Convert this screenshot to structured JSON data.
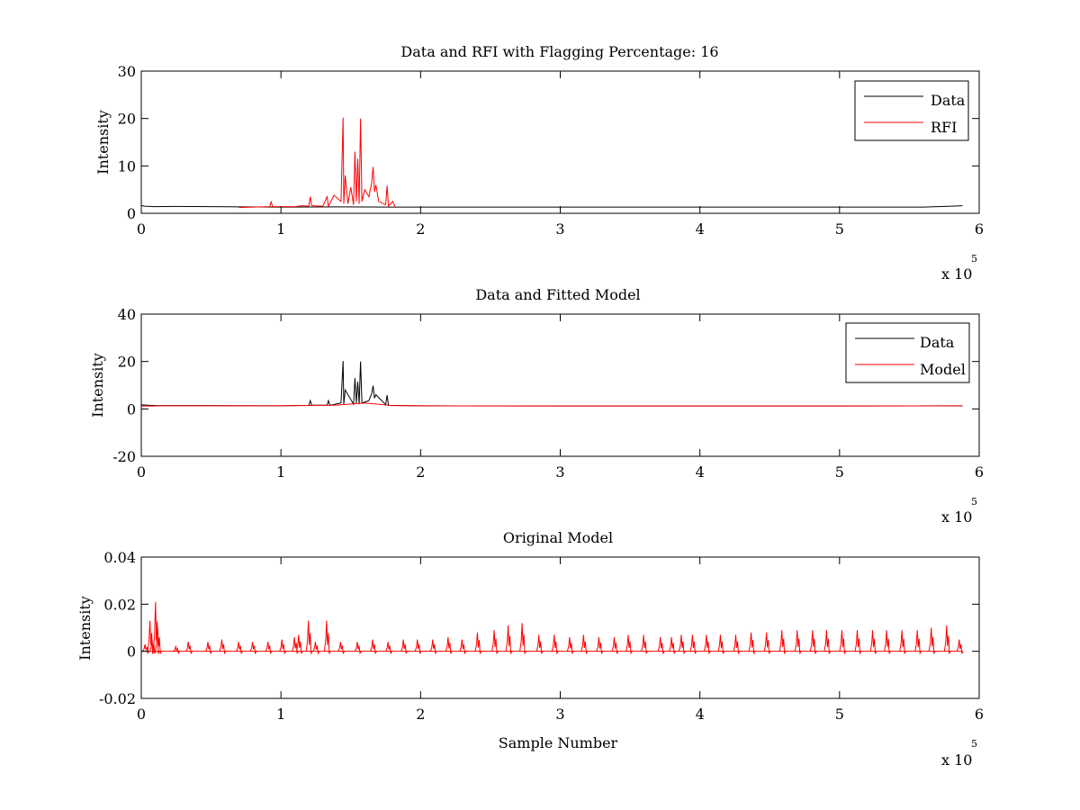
{
  "figure": {
    "background": "#ffffff",
    "axis_color": "#000000"
  },
  "chart_data": [
    {
      "type": "line",
      "title": "Data and RFI with Flagging Percentage: 16",
      "xlabel": "",
      "ylabel": "Intensity",
      "xlim": [
        0,
        600000
      ],
      "ylim": [
        0,
        30
      ],
      "xticks": [
        0,
        1,
        2,
        3,
        4,
        5,
        6
      ],
      "yticks": [
        0,
        10,
        20,
        30
      ],
      "x_multiplier_label": "x 10",
      "x_multiplier_exp": "5",
      "legend_position": "top-right",
      "series": [
        {
          "name": "Data",
          "color": "#000000",
          "x": [
            0,
            2000,
            10000,
            25000,
            50000,
            70000,
            100000,
            140000,
            180000,
            200000,
            300000,
            400000,
            500000,
            560000,
            580000,
            588000
          ],
          "y": [
            1.7,
            1.5,
            1.4,
            1.45,
            1.4,
            1.35,
            1.3,
            1.35,
            1.3,
            1.3,
            1.3,
            1.3,
            1.3,
            1.3,
            1.5,
            1.6
          ]
        },
        {
          "name": "RFI",
          "color": "#ff0000",
          "x": [
            70000,
            80000,
            92000,
            93000,
            94000,
            110000,
            115000,
            120000,
            121000,
            122000,
            130000,
            133000,
            134000,
            138000,
            143000,
            144500,
            145000,
            146000,
            148000,
            150000,
            152000,
            153000,
            154000,
            155000,
            156000,
            157000,
            158000,
            160000,
            163000,
            165000,
            166000,
            167000,
            168000,
            170000,
            175000,
            176000,
            177000,
            180000,
            182000
          ],
          "y": [
            1.2,
            1.3,
            1.4,
            2.4,
            1.4,
            1.4,
            1.6,
            1.5,
            3.5,
            1.6,
            1.5,
            3.5,
            1.5,
            3.8,
            2.5,
            20.2,
            2.0,
            8.0,
            2.0,
            5.5,
            1.8,
            13.0,
            2.5,
            11.5,
            2.0,
            20.0,
            2.5,
            5.0,
            3.5,
            6.5,
            9.8,
            4.5,
            6.0,
            2.5,
            1.8,
            5.8,
            1.5,
            2.5,
            1.2
          ]
        }
      ]
    },
    {
      "type": "line",
      "title": "Data and Fitted Model",
      "xlabel": "",
      "ylabel": "Intensity",
      "xlim": [
        0,
        600000
      ],
      "ylim": [
        -20,
        40
      ],
      "xticks": [
        0,
        1,
        2,
        3,
        4,
        5,
        6
      ],
      "yticks": [
        -20,
        0,
        20,
        40
      ],
      "x_multiplier_label": "x 10",
      "x_multiplier_exp": "5",
      "legend_position": "top-right",
      "series": [
        {
          "name": "Data",
          "color": "#000000",
          "x": [
            0,
            10000,
            50000,
            100000,
            120000,
            121000,
            122000,
            133000,
            134000,
            135000,
            143000,
            144500,
            145000,
            146000,
            152000,
            153000,
            154000,
            155000,
            156000,
            157000,
            158000,
            163000,
            165000,
            166000,
            167000,
            168000,
            175000,
            176000,
            177000,
            200000,
            300000,
            400000,
            500000,
            588000
          ],
          "y": [
            1.7,
            1.4,
            1.4,
            1.3,
            1.5,
            3.5,
            1.6,
            1.5,
            3.5,
            1.5,
            2.5,
            20.2,
            2.0,
            8.0,
            2.0,
            13.0,
            2.5,
            11.5,
            2.0,
            20.0,
            2.5,
            3.5,
            6.5,
            9.8,
            4.5,
            6.0,
            1.8,
            5.8,
            1.5,
            1.3,
            1.2,
            1.2,
            1.2,
            1.3
          ]
        },
        {
          "name": "Model",
          "color": "#ff0000",
          "x": [
            0,
            10000,
            10500,
            50000,
            100000,
            140000,
            160000,
            180000,
            200000,
            300000,
            400000,
            500000,
            588000
          ],
          "y": [
            1.2,
            1.2,
            1.3,
            1.3,
            1.3,
            1.6,
            2.5,
            1.4,
            1.3,
            1.2,
            1.2,
            1.2,
            1.3
          ]
        }
      ]
    },
    {
      "type": "line",
      "title": "Original Model",
      "xlabel": "Sample Number",
      "ylabel": "Intensity",
      "xlim": [
        0,
        600000
      ],
      "ylim": [
        -0.02,
        0.04
      ],
      "xticks": [
        0,
        1,
        2,
        3,
        4,
        5,
        6
      ],
      "yticks": [
        -0.02,
        0,
        0.02,
        0.04
      ],
      "x_multiplier_label": "x 10",
      "x_multiplier_exp": "5",
      "legend_position": "none",
      "series": [
        {
          "color": "#ff0000",
          "spikes": [
            [
              3000,
              0.003
            ],
            [
              6500,
              0.013
            ],
            [
              8000,
              0.005
            ],
            [
              10500,
              0.021
            ],
            [
              12000,
              0.01
            ],
            [
              25000,
              0.002
            ],
            [
              34000,
              0.004
            ],
            [
              48000,
              0.004
            ],
            [
              58000,
              0.005
            ],
            [
              70000,
              0.004
            ],
            [
              80000,
              0.004
            ],
            [
              91000,
              0.004
            ],
            [
              101000,
              0.005
            ],
            [
              110000,
              0.006
            ],
            [
              113000,
              0.007
            ],
            [
              120000,
              0.013
            ],
            [
              125000,
              0.004
            ],
            [
              133000,
              0.013
            ],
            [
              143000,
              0.004
            ],
            [
              155000,
              0.004
            ],
            [
              166000,
              0.005
            ],
            [
              177000,
              0.004
            ],
            [
              188000,
              0.005
            ],
            [
              198000,
              0.005
            ],
            [
              209000,
              0.005
            ],
            [
              220000,
              0.006
            ],
            [
              230000,
              0.005
            ],
            [
              241000,
              0.008
            ],
            [
              253000,
              0.009
            ],
            [
              263000,
              0.011
            ],
            [
              273000,
              0.012
            ],
            [
              285000,
              0.007
            ],
            [
              296000,
              0.007
            ],
            [
              307000,
              0.006
            ],
            [
              317000,
              0.007
            ],
            [
              328000,
              0.006
            ],
            [
              339000,
              0.006
            ],
            [
              349000,
              0.007
            ],
            [
              360000,
              0.007
            ],
            [
              372000,
              0.006
            ],
            [
              380000,
              0.006
            ],
            [
              387000,
              0.007
            ],
            [
              395000,
              0.007
            ],
            [
              405000,
              0.007
            ],
            [
              415000,
              0.007
            ],
            [
              426000,
              0.007
            ],
            [
              437000,
              0.008
            ],
            [
              448000,
              0.008
            ],
            [
              459000,
              0.009
            ],
            [
              470000,
              0.009
            ],
            [
              481000,
              0.009
            ],
            [
              491000,
              0.009
            ],
            [
              502000,
              0.009
            ],
            [
              513000,
              0.009
            ],
            [
              524000,
              0.009
            ],
            [
              534000,
              0.009
            ],
            [
              545000,
              0.009
            ],
            [
              556000,
              0.009
            ],
            [
              566000,
              0.01
            ],
            [
              577000,
              0.011
            ],
            [
              586000,
              0.005
            ]
          ]
        }
      ]
    }
  ]
}
